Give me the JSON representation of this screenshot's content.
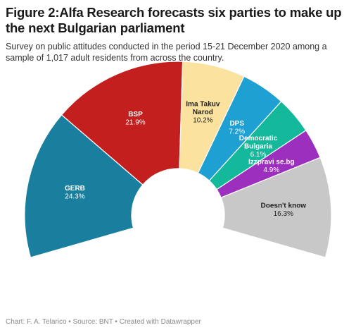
{
  "header": {
    "title": "Figure 2:Alfa Research forecasts six parties to make up the next Bulgarian parliament",
    "subtitle": "Survey on public attitudes conducted in the period 15-21 December 2020 among a sample of 1,017 adult residents from across the country."
  },
  "footer": {
    "text": "Chart: F. A. Telarico • Source: BNT • Created with Datawrapper"
  },
  "chart_data": {
    "type": "pie",
    "variant": "semi-donut",
    "slices": [
      {
        "label_lines": [
          "GERB"
        ],
        "value_text": "24.3%",
        "value": 24.3,
        "color": "#1a7f9f",
        "text_color": "#ffffff"
      },
      {
        "label_lines": [
          "BSP"
        ],
        "value_text": "21.9%",
        "value": 21.9,
        "color": "#c41f1f",
        "text_color": "#ffffff"
      },
      {
        "label_lines": [
          "Ima Takuv",
          "Narod"
        ],
        "value_text": "10.2%",
        "value": 10.2,
        "color": "#fbe39f",
        "text_color": "#222222"
      },
      {
        "label_lines": [
          "DPS"
        ],
        "value_text": "7.2%",
        "value": 7.2,
        "color": "#1ea0d2",
        "text_color": "#ffffff"
      },
      {
        "label_lines": [
          "Democratic",
          "Bulgaria"
        ],
        "value_text": "6.1%",
        "value": 6.1,
        "color": "#14b89a",
        "text_color": "#ffffff"
      },
      {
        "label_lines": [
          "Izzpravi se.bg"
        ],
        "value_text": "4.9%",
        "value": 4.9,
        "color": "#9c2fbe",
        "text_color": "#ffffff"
      },
      {
        "label_lines": [
          "Doesn't know"
        ],
        "value_text": "16.3%",
        "value": 16.3,
        "color": "#c8c8c8",
        "text_color": "#222222"
      }
    ]
  }
}
